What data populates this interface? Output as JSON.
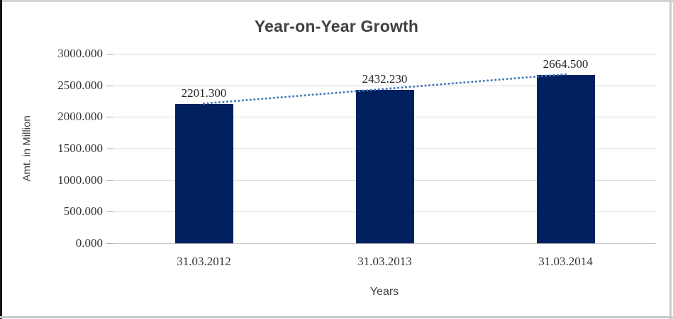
{
  "chart_data": {
    "type": "bar",
    "title": "Year-on-Year Growth",
    "xlabel": "Years",
    "ylabel": "Amt. in Million",
    "categories": [
      "31.03.2012",
      "31.03.2013",
      "31.03.2014"
    ],
    "values": [
      2201.3,
      2432.23,
      2664.5
    ],
    "value_labels": [
      "2201.300",
      "2432.230",
      "2664.500"
    ],
    "ylim": [
      0,
      3000
    ],
    "ytick_step": 500,
    "ytick_labels": [
      "0.000",
      "500.000",
      "1000.000",
      "1500.000",
      "2000.000",
      "2500.000",
      "3000.000"
    ],
    "grid": true,
    "legend": "none",
    "trendline": {
      "type": "linear",
      "style": "dotted"
    }
  },
  "colors": {
    "bar": "#002060",
    "trendline": "#4a7ebb",
    "gridline": "#d9d9d9",
    "axis_line": "#c0c0c0",
    "title_text": "#404040",
    "label_text": "#262626"
  }
}
